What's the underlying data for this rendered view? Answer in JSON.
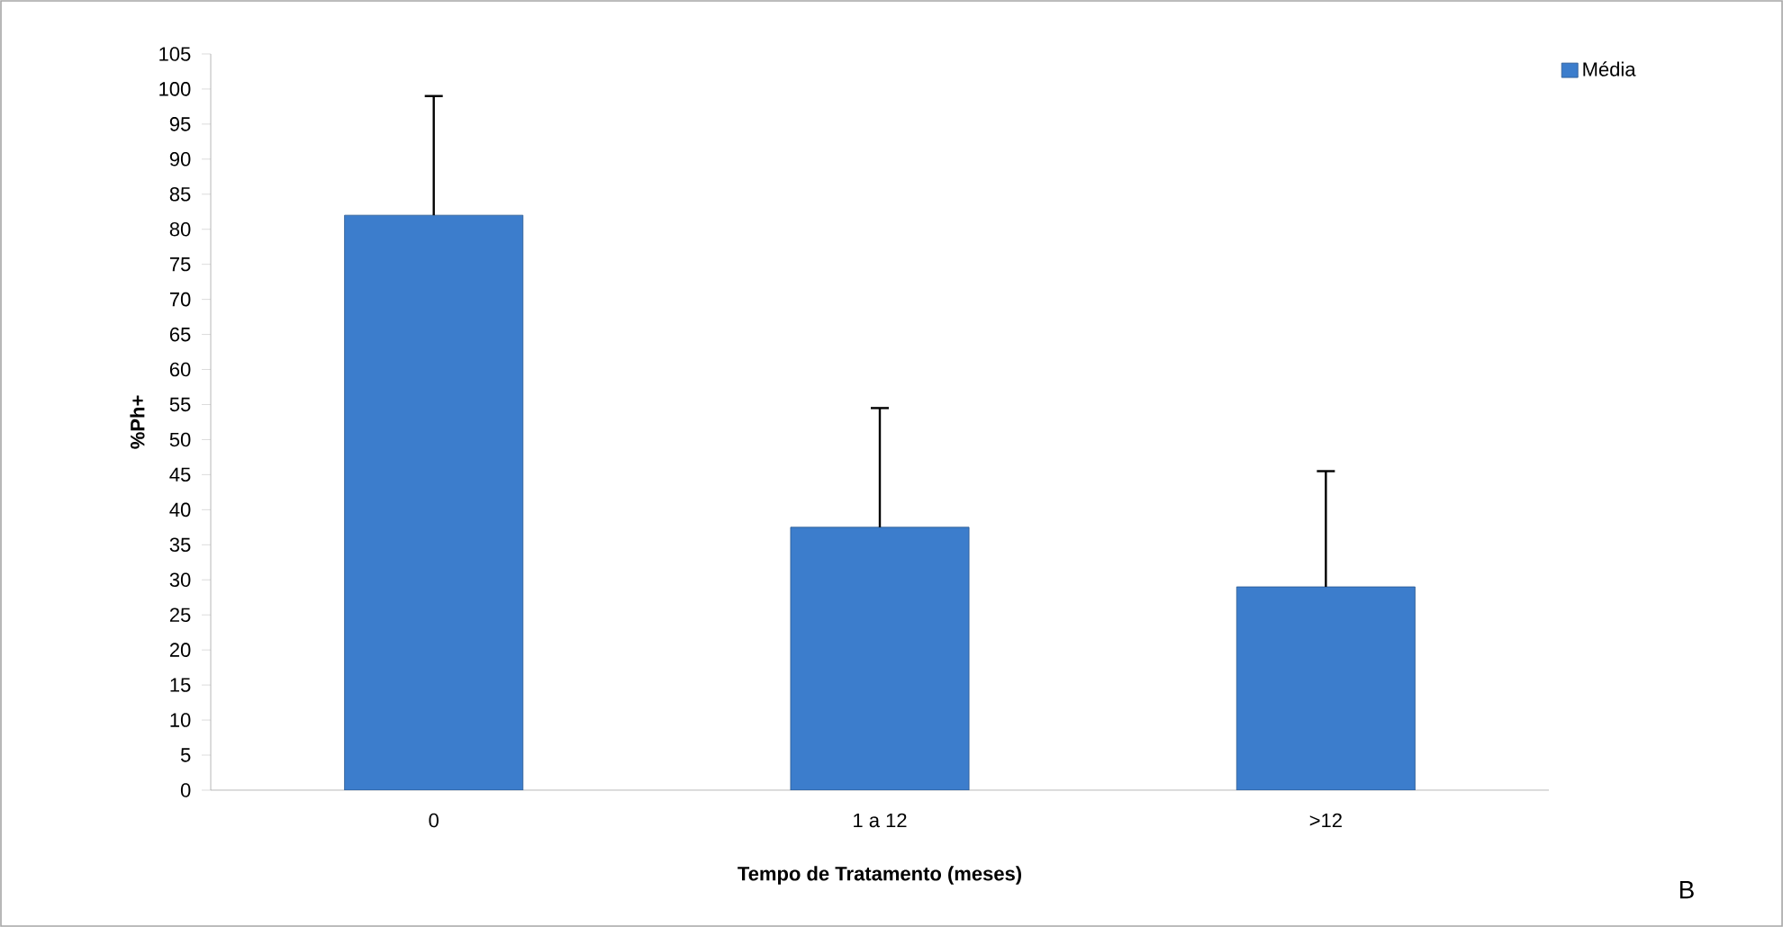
{
  "chart_data": {
    "type": "bar",
    "xlabel": "Tempo de Tratamento (meses)",
    "ylabel": "%Ph+",
    "categories": [
      "0",
      "1 a 12",
      ">12"
    ],
    "series": [
      {
        "name": "Média",
        "color": "#3c7dcc",
        "values": [
          82,
          37.5,
          29
        ],
        "errors": [
          [
            82,
            99
          ],
          [
            37.5,
            54.5
          ],
          [
            29,
            45.5
          ]
        ]
      }
    ],
    "ylim": [
      0,
      105
    ],
    "yticks": [
      0,
      5,
      10,
      15,
      20,
      25,
      30,
      35,
      40,
      45,
      50,
      55,
      60,
      65,
      70,
      75,
      80,
      85,
      90,
      95,
      100,
      105
    ],
    "legend": "top right",
    "grid": false,
    "annotations": [
      "B"
    ]
  }
}
